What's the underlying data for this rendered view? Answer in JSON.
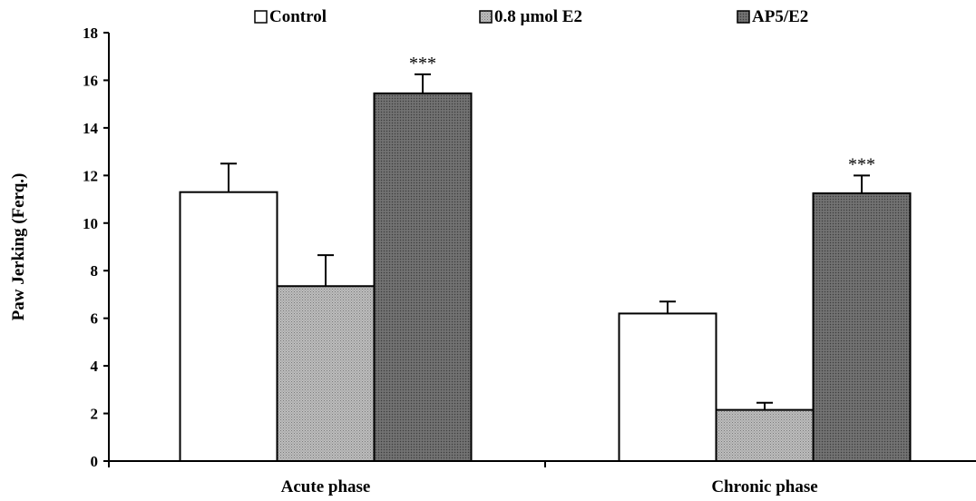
{
  "chart_data": {
    "type": "bar",
    "title": "",
    "xlabel": "",
    "ylabel": "Paw Jerking (Ferq.)",
    "ylim": [
      0,
      18
    ],
    "yticks": [
      0,
      2,
      4,
      6,
      8,
      10,
      12,
      14,
      16,
      18
    ],
    "categories": [
      "Acute phase",
      "Chronic phase"
    ],
    "legend_position": "top",
    "grid": false,
    "series": [
      {
        "name": "Control",
        "values": [
          11.3,
          6.2
        ],
        "errors": [
          1.2,
          0.5
        ],
        "fill": "#ffffff",
        "pattern": "none"
      },
      {
        "name": "0.8 µmol E2",
        "values": [
          7.35,
          2.15
        ],
        "errors": [
          1.3,
          0.3
        ],
        "fill": "#a6a6a6",
        "pattern": "fine-dots"
      },
      {
        "name": "AP5/E2",
        "values": [
          15.45,
          11.25
        ],
        "errors": [
          0.8,
          0.75
        ],
        "fill": "#6e6e6e",
        "pattern": "fine-dots"
      }
    ],
    "annotations": [
      {
        "series": 2,
        "category": 0,
        "text": "***"
      },
      {
        "series": 2,
        "category": 1,
        "text": "***"
      }
    ]
  }
}
